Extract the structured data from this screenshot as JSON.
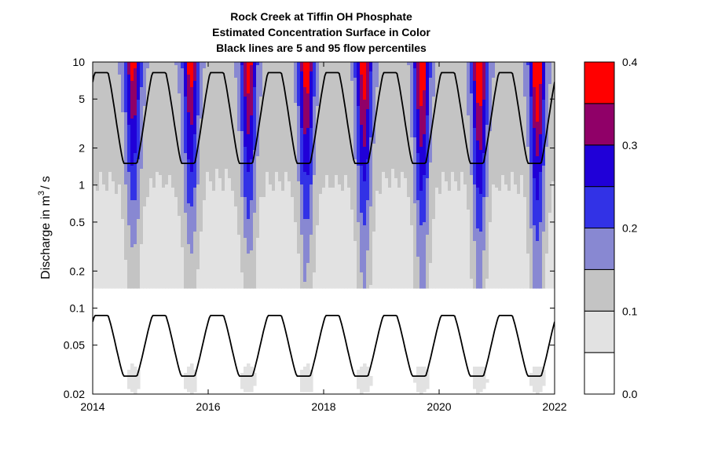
{
  "chart_data": {
    "type": "heatmap",
    "title_lines": [
      "Rock Creek at Tiffin OH    Phosphate",
      "Estimated Concentration Surface in Color",
      "Black lines are 5 and 95 flow percentiles"
    ],
    "ylabel_main": "Discharge in m",
    "ylabel_sup": "3",
    "ylabel_tail": "/ s",
    "x_ticks": [
      {
        "value": 2014,
        "label": "2014"
      },
      {
        "value": 2016,
        "label": "2016"
      },
      {
        "value": 2018,
        "label": "2018"
      },
      {
        "value": 2020,
        "label": "2020"
      },
      {
        "value": 2022,
        "label": "2022"
      }
    ],
    "xlim": [
      2014,
      2022
    ],
    "y_scale": "log",
    "ylim": [
      0.02,
      10
    ],
    "y_ticks": [
      {
        "value": 0.02,
        "label": "0.02"
      },
      {
        "value": 0.05,
        "label": "0.05"
      },
      {
        "value": 0.1,
        "label": "0.1"
      },
      {
        "value": 0.2,
        "label": "0.2"
      },
      {
        "value": 0.5,
        "label": "0.5"
      },
      {
        "value": 1,
        "label": "1"
      },
      {
        "value": 2,
        "label": "2"
      },
      {
        "value": 5,
        "label": "5"
      },
      {
        "value": 10,
        "label": "10"
      }
    ],
    "color_levels": [
      {
        "from": 0.0,
        "to": 0.05,
        "color": "#FFFFFF"
      },
      {
        "from": 0.05,
        "to": 0.1,
        "color": "#E2E2E2"
      },
      {
        "from": 0.1,
        "to": 0.15,
        "color": "#C4C4C4"
      },
      {
        "from": 0.15,
        "to": 0.2,
        "color": "#8888D2"
      },
      {
        "from": 0.2,
        "to": 0.25,
        "color": "#3232E6"
      },
      {
        "from": 0.25,
        "to": 0.3,
        "color": "#2000D8"
      },
      {
        "from": 0.3,
        "to": 0.35,
        "color": "#900068"
      },
      {
        "from": 0.35,
        "to": 0.4,
        "color": "#FF0000"
      }
    ],
    "colorbar_ticks": [
      {
        "value": 0.0,
        "label": "0.0"
      },
      {
        "value": 0.1,
        "label": "0.1"
      },
      {
        "value": 0.2,
        "label": "0.2"
      },
      {
        "value": 0.3,
        "label": "0.3"
      },
      {
        "value": 0.4,
        "label": "0.4"
      }
    ],
    "flow_percentile_lines": [
      {
        "percentile": 95,
        "max": 8.2,
        "min": 1.5,
        "peak_phase": 0.15,
        "color": "#000000"
      },
      {
        "percentile": 5,
        "max": 0.087,
        "min": 0.028,
        "peak_phase": 0.15,
        "color": "#000000"
      }
    ],
    "summer_peak_phase": 0.7
  }
}
